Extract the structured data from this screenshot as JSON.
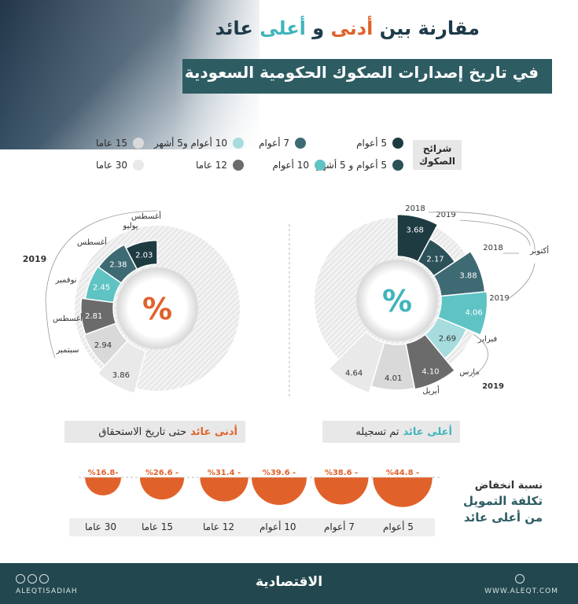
{
  "title": {
    "part1": "مقارنة بين",
    "lowest": "أدنى",
    "and": "و",
    "highest": "أعلى",
    "part2": "عائد",
    "subtitle": "في تاريخ إصدارات الصكوك الحكومية السعودية"
  },
  "legend": {
    "tag": "شرائح الصكوك",
    "items": [
      {
        "label": "5 أعوام",
        "color": "#1f3b42"
      },
      {
        "label": "7 أعوام",
        "color": "#3e6a74"
      },
      {
        "label": "10 أعوام و5 أشهر",
        "color": "#a6dcdd"
      },
      {
        "label": "15 عاما",
        "color": "#d9d9d9"
      },
      {
        "label": "5 أعوام و 5 أشهر",
        "color": "#2c5158"
      },
      {
        "label": "10 أعوام",
        "color": "#5fc3c4"
      },
      {
        "label": "12 عاما",
        "color": "#6b6b6b"
      },
      {
        "label": "30 عاما",
        "color": "#e9e9e9"
      }
    ]
  },
  "center_symbol": "%",
  "chart_data": [
    {
      "type": "pie",
      "name": "أعلى عائد تم تسجيله",
      "series": [
        {
          "tranche": "5 أعوام",
          "value": 3.68,
          "date": "2018"
        },
        {
          "tranche": "5 أعوام و 5 أشهر",
          "value": 2.17,
          "date": "2019"
        },
        {
          "tranche": "7 أعوام",
          "value": 3.88,
          "date": "2018"
        },
        {
          "tranche": "10 أعوام",
          "value": 4.06,
          "date": "أكتوبر"
        },
        {
          "tranche": "10 أعوام و5 أشهر",
          "value": 2.69,
          "date": "2019"
        },
        {
          "tranche": "12 عاما",
          "value": 4.1,
          "date": "فبراير"
        },
        {
          "tranche": "15 عاما",
          "value": 4.01,
          "date": "مارس"
        },
        {
          "tranche": "30 عاما",
          "value": 4.64,
          "date": "أبريل"
        }
      ],
      "date_labels": [
        "2018",
        "2019",
        "2018",
        "أكتوبر",
        "2019",
        "فبراير",
        "مارس",
        "أبريل",
        "2019"
      ],
      "label": "أعلى عائد تم تسجيله"
    },
    {
      "type": "pie",
      "name": "أدنى عائد حتى تاريخ الاستحقاق",
      "series": [
        {
          "tranche": "5 أعوام",
          "value": 2.03,
          "date": "أغسطس"
        },
        {
          "tranche": "7 أعوام",
          "value": 2.38,
          "date": "يوليو"
        },
        {
          "tranche": "10 أعوام",
          "value": 2.45,
          "date": "أغسطس"
        },
        {
          "tranche": "12 عاما",
          "value": 2.81,
          "date": "نوفمبر"
        },
        {
          "tranche": "15 عاما",
          "value": 2.94,
          "date": "أغسطس"
        },
        {
          "tranche": "30 عاما",
          "value": 3.86,
          "date": "سبتمبر"
        }
      ],
      "year": "2019",
      "label": "أدنى عائد حتى تاريخ الاستحقاق"
    },
    {
      "type": "bar",
      "name": "نسبة انخفاض تكلفة التمويل من أعلى عائد",
      "categories": [
        "5 أعوام",
        "7 أعوام",
        "10 أعوام",
        "12 عاما",
        "15 عاما",
        "30 عاما"
      ],
      "values": [
        -44.8,
        -38.6,
        -39.6,
        -31.4,
        -26.6,
        -16.8
      ],
      "value_labels": [
        "%44.8 -",
        "%38.6 -",
        "%39.6 -",
        "%31.4 -",
        "%26.6 -",
        "%16.8-"
      ]
    }
  ],
  "boxes": {
    "right": {
      "accent": "أعلى عائد",
      "rest": "تم تسجيله"
    },
    "left": {
      "accent": "أدنى عائد",
      "rest": "حتى تاريخ الاستحقاق"
    }
  },
  "decline": {
    "line1": "نسبة انخفاض",
    "line2": "تكلفة التمويل",
    "line3": "من أعلى عائد"
  },
  "footer": {
    "brand": "الاقتصادية",
    "site": "WWW.ALEQT.COM",
    "handle": "ALEQTISADIAH"
  },
  "colors": {
    "orange": "#e0622a",
    "teal": "#3fb5bb",
    "dark": "#23474e"
  }
}
